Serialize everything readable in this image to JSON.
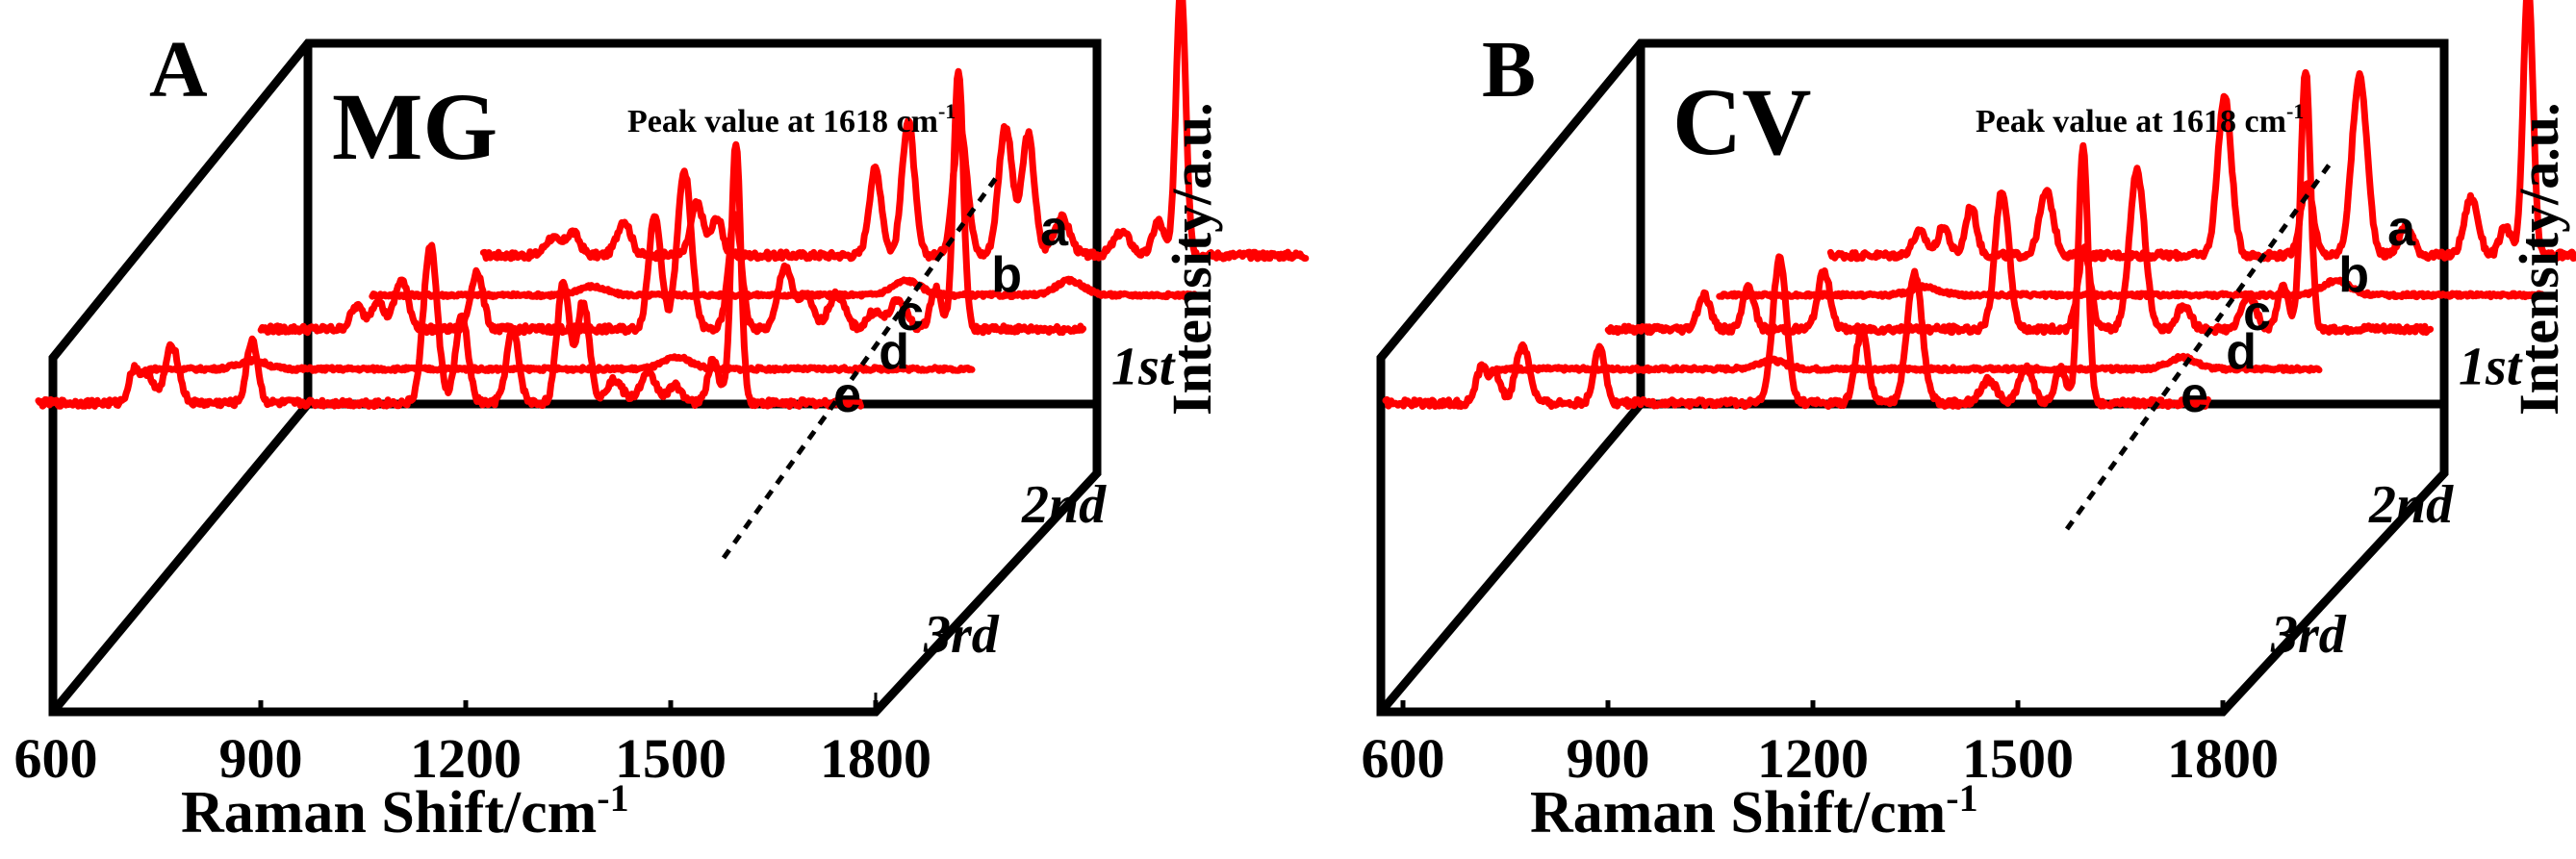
{
  "chart_data": [
    {
      "type": "line",
      "panel_letter": "A",
      "compound": "MG",
      "annotation": "Peak value at 1618 cm",
      "annotation_sup": "-1",
      "xlabel": "Raman Shift/cm",
      "xlabel_sup": "-1",
      "ylabel": "Intensity/a.u.",
      "xlim": [
        600,
        1800
      ],
      "xticks": [
        "600",
        "900",
        "1200",
        "1500",
        "1800"
      ],
      "ylim": [
        0,
        1
      ],
      "grid": false,
      "depth_labels": [
        "1st",
        "2nd",
        "3rd"
      ],
      "series": [
        {
          "name": "a",
          "baseline": 0.02,
          "noise": 0.012,
          "peaks": [
            [
              1618,
              0.95,
              7
            ],
            [
              1585,
              0.12,
              8
            ],
            [
              1362,
              0.45,
              10
            ],
            [
              1395,
              0.42,
              9
            ],
            [
              1296,
              0.45,
              10
            ],
            [
              1220,
              0.47,
              9
            ],
            [
              1172,
              0.3,
              9
            ],
            [
              912,
              0.18,
              9
            ],
            [
              941,
              0.13,
              8
            ],
            [
              805,
              0.12,
              10
            ],
            [
              730,
              0.08,
              10
            ],
            [
              700,
              0.06,
              10
            ],
            [
              1444,
              0.13,
              12
            ],
            [
              1532,
              0.08,
              12
            ]
          ]
        },
        {
          "name": "b",
          "baseline": 0.01,
          "noise": 0.006,
          "peaks": [
            [
              1618,
              0.05,
              20
            ],
            [
              1380,
              0.05,
              20
            ],
            [
              920,
              0.03,
              20
            ]
          ]
        },
        {
          "name": "c",
          "baseline": 0.02,
          "noise": 0.012,
          "peaks": [
            [
              1618,
              0.9,
              7
            ],
            [
              1585,
              0.14,
              8
            ],
            [
              1218,
              0.55,
              10
            ],
            [
              1292,
              0.4,
              9
            ],
            [
              1175,
              0.4,
              9
            ],
            [
              1365,
              0.22,
              10
            ],
            [
              1395,
              0.12,
              10
            ],
            [
              1440,
              0.12,
              12
            ],
            [
              915,
              0.2,
              9
            ],
            [
              805,
              0.17,
              10
            ],
            [
              770,
              0.1,
              9
            ],
            [
              740,
              0.08,
              9
            ],
            [
              1530,
              0.1,
              12
            ],
            [
              1495,
              0.06,
              10
            ]
          ]
        },
        {
          "name": "d",
          "baseline": 0.01,
          "noise": 0.006,
          "peaks": [
            [
              1370,
              0.04,
              20
            ],
            [
              750,
              0.03,
              20
            ]
          ]
        },
        {
          "name": "e",
          "baseline": 0.02,
          "noise": 0.012,
          "peaks": [
            [
              1618,
              0.9,
              7
            ],
            [
              1585,
              0.15,
              8
            ],
            [
              1172,
              0.55,
              10
            ],
            [
              1366,
              0.42,
              9
            ],
            [
              1395,
              0.35,
              9
            ],
            [
              1218,
              0.3,
              9
            ],
            [
              1292,
              0.25,
              9
            ],
            [
              912,
              0.22,
              8
            ],
            [
              795,
              0.2,
              10
            ],
            [
              740,
              0.12,
              8
            ],
            [
              760,
              0.1,
              8
            ],
            [
              1490,
              0.1,
              12
            ],
            [
              1440,
              0.08,
              12
            ],
            [
              1530,
              0.06,
              10
            ]
          ]
        }
      ]
    },
    {
      "type": "line",
      "panel_letter": "B",
      "compound": "CV",
      "annotation": "Peak value at 1618 cm",
      "annotation_sup": "-1",
      "xlabel": "Raman Shift/cm",
      "xlabel_sup": "-1",
      "ylabel": "Intensity/a.u.",
      "xlim": [
        600,
        1800
      ],
      "xticks": [
        "600",
        "900",
        "1200",
        "1500",
        "1800"
      ],
      "ylim": [
        0,
        1
      ],
      "grid": false,
      "depth_labels": [
        "1st",
        "2nd",
        "3rd"
      ],
      "series": [
        {
          "name": "a",
          "baseline": 0.02,
          "noise": 0.012,
          "peaks": [
            [
              1618,
              0.95,
              7
            ],
            [
              1585,
              0.1,
              8
            ],
            [
              1372,
              0.62,
              11
            ],
            [
              1535,
              0.2,
              10
            ],
            [
              1175,
              0.55,
              10
            ],
            [
              1295,
              0.25,
              9
            ],
            [
              1440,
              0.1,
              10
            ],
            [
              915,
              0.22,
              10
            ],
            [
              805,
              0.17,
              8
            ],
            [
              765,
              0.1,
              8
            ],
            [
              730,
              0.08,
              10
            ]
          ]
        },
        {
          "name": "b",
          "baseline": 0.01,
          "noise": 0.006,
          "peaks": [
            [
              1500,
              0.05,
              20
            ],
            [
              900,
              0.03,
              20
            ]
          ]
        },
        {
          "name": "c",
          "baseline": 0.02,
          "noise": 0.012,
          "peaks": [
            [
              1618,
              0.9,
              7
            ],
            [
              1585,
              0.15,
              8
            ],
            [
              1372,
              0.55,
              11
            ],
            [
              1175,
              0.48,
              10
            ],
            [
              1535,
              0.12,
              10
            ],
            [
              1295,
              0.28,
              9
            ],
            [
              915,
              0.2,
              9
            ],
            [
              805,
              0.15,
              8
            ],
            [
              740,
              0.12,
              9
            ],
            [
              1440,
              0.08,
              10
            ]
          ]
        },
        {
          "name": "d",
          "baseline": 0.01,
          "noise": 0.006,
          "peaks": [
            [
              1600,
              0.04,
              20
            ],
            [
              1000,
              0.03,
              20
            ]
          ]
        },
        {
          "name": "e",
          "baseline": 0.02,
          "noise": 0.012,
          "peaks": [
            [
              1618,
              0.9,
              7
            ],
            [
              1585,
              0.12,
              8
            ],
            [
              1175,
              0.5,
              10
            ],
            [
              1372,
              0.45,
              11
            ],
            [
              1295,
              0.25,
              9
            ],
            [
              912,
              0.2,
              8
            ],
            [
              800,
              0.2,
              10
            ],
            [
              1535,
              0.12,
              10
            ],
            [
              1480,
              0.08,
              12
            ],
            [
              740,
              0.12,
              8
            ],
            [
              760,
              0.1,
              8
            ]
          ]
        }
      ]
    }
  ]
}
